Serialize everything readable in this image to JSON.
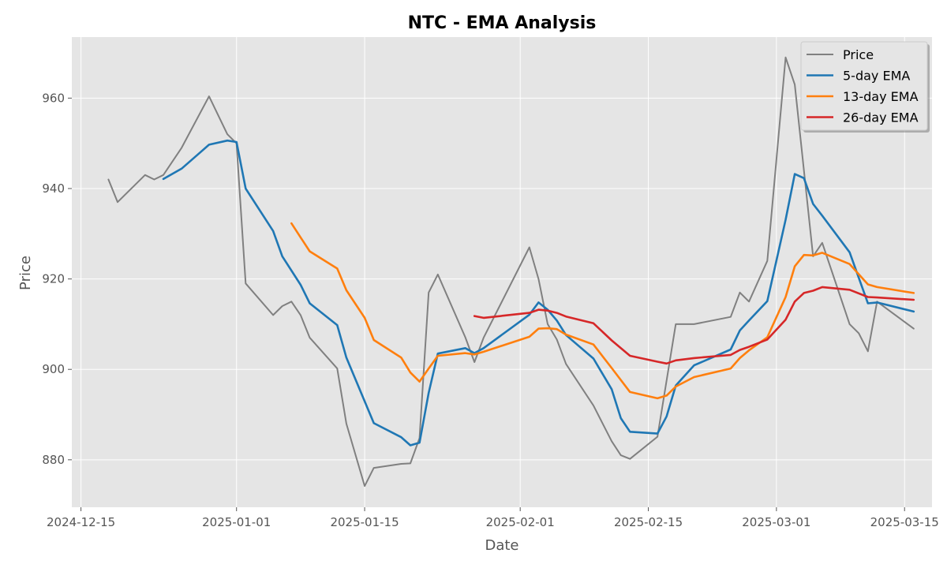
{
  "chart_data": {
    "type": "line",
    "title": "NTC - EMA Analysis",
    "xlabel": "Date",
    "ylabel": "Price",
    "xlim": [
      "2024-12-14",
      "2025-03-18"
    ],
    "ylim": [
      869.5,
      973.5
    ],
    "x_ticks": [
      "2024-12-15",
      "2025-01-01",
      "2025-01-15",
      "2025-02-01",
      "2025-02-15",
      "2025-03-01",
      "2025-03-15"
    ],
    "y_ticks": [
      880,
      900,
      920,
      940,
      960
    ],
    "grid": true,
    "legend_position": "top-right",
    "series": [
      {
        "name": "Price",
        "color": "#808080",
        "points": [
          [
            "2024-12-18",
            942
          ],
          [
            "2024-12-19",
            937
          ],
          [
            "2024-12-22",
            943
          ],
          [
            "2024-12-23",
            942
          ],
          [
            "2024-12-24",
            943
          ],
          [
            "2024-12-26",
            949
          ],
          [
            "2024-12-29",
            960.4
          ],
          [
            "2024-12-31",
            952
          ],
          [
            "2025-01-01",
            950
          ],
          [
            "2025-01-02",
            919
          ],
          [
            "2025-01-05",
            912
          ],
          [
            "2025-01-06",
            914
          ],
          [
            "2025-01-07",
            915
          ],
          [
            "2025-01-08",
            912
          ],
          [
            "2025-01-09",
            907
          ],
          [
            "2025-01-12",
            900.2
          ],
          [
            "2025-01-13",
            888
          ],
          [
            "2025-01-15",
            874.2
          ],
          [
            "2025-01-16",
            878.2
          ],
          [
            "2025-01-19",
            879.1
          ],
          [
            "2025-01-20",
            879.2
          ],
          [
            "2025-01-21",
            884.8
          ],
          [
            "2025-01-22",
            917
          ],
          [
            "2025-01-23",
            921
          ],
          [
            "2025-01-26",
            907.1
          ],
          [
            "2025-01-27",
            901.6
          ],
          [
            "2025-01-28",
            907
          ],
          [
            "2025-02-02",
            927
          ],
          [
            "2025-02-03",
            920
          ],
          [
            "2025-02-04",
            910
          ],
          [
            "2025-02-05",
            906.6
          ],
          [
            "2025-02-06",
            901.2
          ],
          [
            "2025-02-09",
            892
          ],
          [
            "2025-02-11",
            884.1
          ],
          [
            "2025-02-12",
            881
          ],
          [
            "2025-02-13",
            880.2
          ],
          [
            "2025-02-16",
            885.1
          ],
          [
            "2025-02-18",
            910
          ],
          [
            "2025-02-20",
            910
          ],
          [
            "2025-02-24",
            911.6
          ],
          [
            "2025-02-25",
            917
          ],
          [
            "2025-02-26",
            915
          ],
          [
            "2025-02-28",
            924
          ],
          [
            "2025-03-02",
            969
          ],
          [
            "2025-03-03",
            963
          ],
          [
            "2025-03-05",
            925
          ],
          [
            "2025-03-06",
            928
          ],
          [
            "2025-03-09",
            910
          ],
          [
            "2025-03-10",
            908
          ],
          [
            "2025-03-11",
            904
          ],
          [
            "2025-03-12",
            915
          ],
          [
            "2025-03-16",
            909
          ]
        ]
      },
      {
        "name": "5-day EMA",
        "color": "#1f77b4",
        "points": [
          [
            "2024-12-24",
            942.1
          ],
          [
            "2024-12-26",
            944.4
          ],
          [
            "2024-12-29",
            949.7
          ],
          [
            "2024-12-31",
            950.6
          ],
          [
            "2025-01-01",
            950.3
          ],
          [
            "2025-01-02",
            940
          ],
          [
            "2025-01-05",
            930.6
          ],
          [
            "2025-01-06",
            925
          ],
          [
            "2025-01-08",
            918.7
          ],
          [
            "2025-01-09",
            914.6
          ],
          [
            "2025-01-12",
            909.8
          ],
          [
            "2025-01-13",
            902.6
          ],
          [
            "2025-01-16",
            888.1
          ],
          [
            "2025-01-19",
            885
          ],
          [
            "2025-01-20",
            883.2
          ],
          [
            "2025-01-21",
            883.8
          ],
          [
            "2025-01-22",
            894.8
          ],
          [
            "2025-01-23",
            903.5
          ],
          [
            "2025-01-26",
            904.7
          ],
          [
            "2025-01-27",
            903.6
          ],
          [
            "2025-01-28",
            904.7
          ],
          [
            "2025-02-02",
            912.1
          ],
          [
            "2025-02-03",
            914.8
          ],
          [
            "2025-02-04",
            913.2
          ],
          [
            "2025-02-05",
            910.8
          ],
          [
            "2025-02-06",
            907.6
          ],
          [
            "2025-02-09",
            902.4
          ],
          [
            "2025-02-11",
            895.6
          ],
          [
            "2025-02-12",
            889.2
          ],
          [
            "2025-02-13",
            886.2
          ],
          [
            "2025-02-16",
            885.8
          ],
          [
            "2025-02-17",
            889.6
          ],
          [
            "2025-02-18",
            896.4
          ],
          [
            "2025-02-20",
            900.9
          ],
          [
            "2025-02-24",
            904.4
          ],
          [
            "2025-02-25",
            908.6
          ],
          [
            "2025-02-26",
            910.8
          ],
          [
            "2025-02-28",
            915.1
          ],
          [
            "2025-03-02",
            933.1
          ],
          [
            "2025-03-03",
            943.2
          ],
          [
            "2025-03-04",
            942.3
          ],
          [
            "2025-03-05",
            936.6
          ],
          [
            "2025-03-06",
            934
          ],
          [
            "2025-03-09",
            925.9
          ],
          [
            "2025-03-11",
            914.6
          ],
          [
            "2025-03-12",
            914.8
          ],
          [
            "2025-03-16",
            912.8
          ]
        ]
      },
      {
        "name": "13-day EMA",
        "color": "#ff7f0e",
        "points": [
          [
            "2025-01-07",
            932.3
          ],
          [
            "2025-01-08",
            929.2
          ],
          [
            "2025-01-09",
            926.1
          ],
          [
            "2025-01-12",
            922.3
          ],
          [
            "2025-01-13",
            917.5
          ],
          [
            "2025-01-15",
            911.4
          ],
          [
            "2025-01-16",
            906.5
          ],
          [
            "2025-01-19",
            902.6
          ],
          [
            "2025-01-20",
            899.3
          ],
          [
            "2025-01-21",
            897.3
          ],
          [
            "2025-01-22",
            900.2
          ],
          [
            "2025-01-23",
            903
          ],
          [
            "2025-01-26",
            903.6
          ],
          [
            "2025-01-27",
            903.3
          ],
          [
            "2025-01-28",
            903.9
          ],
          [
            "2025-02-02",
            907.2
          ],
          [
            "2025-02-03",
            909
          ],
          [
            "2025-02-04",
            909.1
          ],
          [
            "2025-02-05",
            908.9
          ],
          [
            "2025-02-06",
            907.7
          ],
          [
            "2025-02-09",
            905.5
          ],
          [
            "2025-02-11",
            900.3
          ],
          [
            "2025-02-13",
            895
          ],
          [
            "2025-02-16",
            893.6
          ],
          [
            "2025-02-17",
            894.2
          ],
          [
            "2025-02-18",
            896.2
          ],
          [
            "2025-02-20",
            898.3
          ],
          [
            "2025-02-24",
            900.2
          ],
          [
            "2025-02-25",
            902.5
          ],
          [
            "2025-02-26",
            904.2
          ],
          [
            "2025-02-28",
            907.1
          ],
          [
            "2025-03-02",
            916
          ],
          [
            "2025-03-03",
            922.8
          ],
          [
            "2025-03-04",
            925.3
          ],
          [
            "2025-03-05",
            925.2
          ],
          [
            "2025-03-06",
            925.8
          ],
          [
            "2025-03-09",
            923.3
          ],
          [
            "2025-03-11",
            918.8
          ],
          [
            "2025-03-12",
            918.2
          ],
          [
            "2025-03-16",
            916.9
          ]
        ]
      },
      {
        "name": "26-day EMA",
        "color": "#d62728",
        "points": [
          [
            "2025-01-27",
            911.8
          ],
          [
            "2025-01-28",
            911.4
          ],
          [
            "2025-02-02",
            912.5
          ],
          [
            "2025-02-03",
            913.2
          ],
          [
            "2025-02-04",
            913
          ],
          [
            "2025-02-05",
            912.5
          ],
          [
            "2025-02-06",
            911.7
          ],
          [
            "2025-02-09",
            910.2
          ],
          [
            "2025-02-11",
            906.4
          ],
          [
            "2025-02-13",
            903
          ],
          [
            "2025-02-16",
            901.7
          ],
          [
            "2025-02-17",
            901.3
          ],
          [
            "2025-02-18",
            902
          ],
          [
            "2025-02-20",
            902.5
          ],
          [
            "2025-02-24",
            903.2
          ],
          [
            "2025-02-25",
            904.3
          ],
          [
            "2025-02-26",
            905
          ],
          [
            "2025-02-28",
            906.6
          ],
          [
            "2025-03-02",
            911
          ],
          [
            "2025-03-03",
            915
          ],
          [
            "2025-03-04",
            916.9
          ],
          [
            "2025-03-05",
            917.4
          ],
          [
            "2025-03-06",
            918.2
          ],
          [
            "2025-03-09",
            917.6
          ],
          [
            "2025-03-11",
            916
          ],
          [
            "2025-03-12",
            915.9
          ],
          [
            "2025-03-16",
            915.4
          ]
        ]
      }
    ]
  }
}
